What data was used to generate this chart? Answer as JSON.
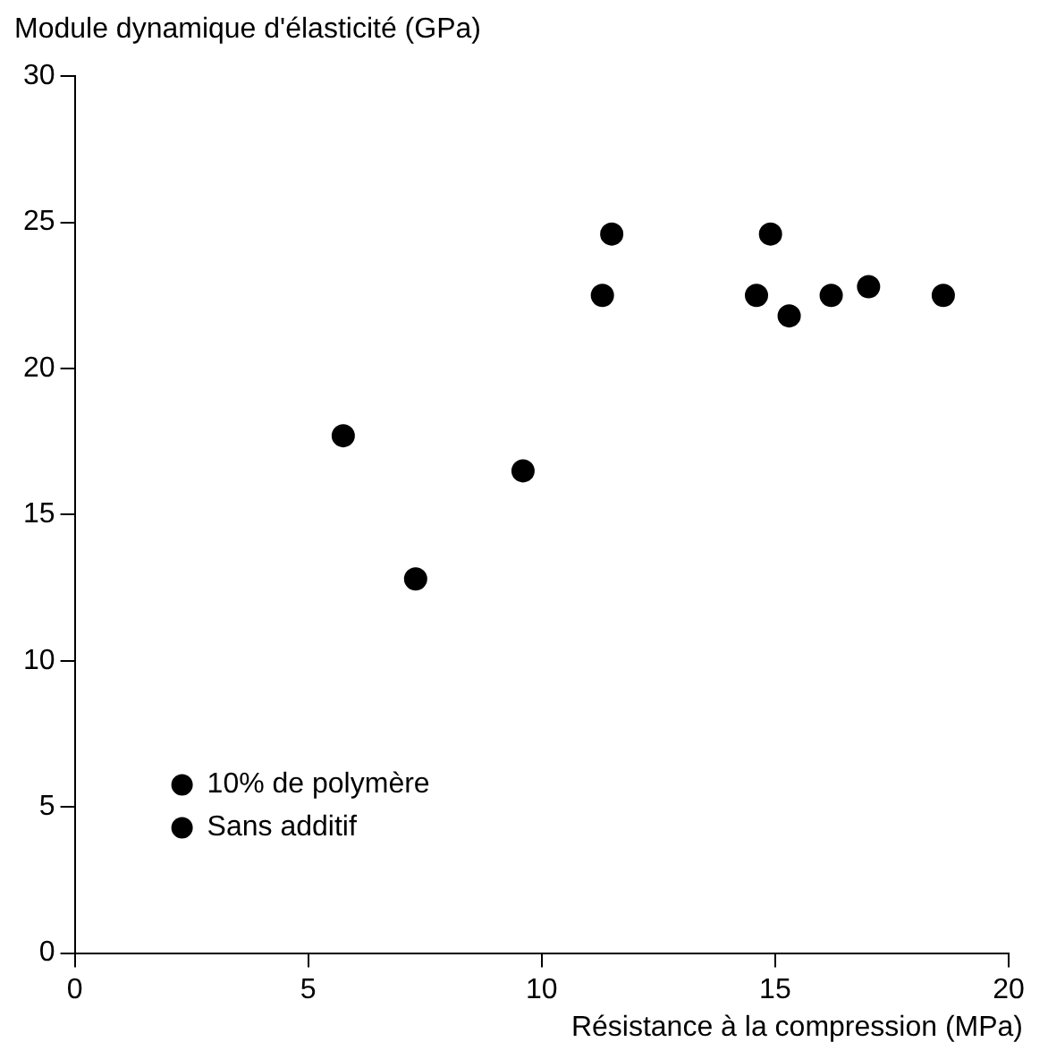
{
  "chart_data": {
    "type": "scatter",
    "xlabel": "Résistance à la compression (MPa)",
    "ylabel": "Module dynamique d'élasticité (GPa)",
    "xlim": [
      0,
      20
    ],
    "xticks": [
      0,
      5,
      10,
      15,
      20
    ],
    "ylim": [
      0,
      30
    ],
    "yticks": [
      0,
      5,
      10,
      15,
      20,
      25,
      30
    ],
    "grid": false,
    "legend": "bottom left",
    "marker": "circle",
    "series": [
      {
        "name": "10% de polymère",
        "color": "#000000",
        "x": [
          7.3,
          9.6,
          14.6,
          15.3,
          16.2,
          17.0,
          18.6
        ],
        "values": [
          12.8,
          16.5,
          22.5,
          21.8,
          22.5,
          22.8,
          22.5
        ]
      },
      {
        "name": "Sans additif",
        "color": "#000000",
        "x": [
          5.75,
          11.3,
          11.5,
          14.9
        ],
        "values": [
          17.7,
          22.5,
          24.6,
          24.6
        ]
      }
    ]
  }
}
